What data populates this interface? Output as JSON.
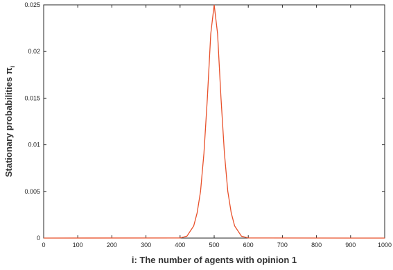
{
  "chart_data": {
    "type": "line",
    "title": "",
    "xlabel": "i: The number of agents with opinion 1",
    "ylabel": "Stationary probabilities π",
    "ylabel_subscript": "i",
    "xlim": [
      0,
      1000
    ],
    "ylim": [
      0,
      0.025
    ],
    "xticks": [
      "0",
      "100",
      "200",
      "300",
      "400",
      "500",
      "600",
      "700",
      "800",
      "900",
      "1000"
    ],
    "yticks": [
      "0",
      "0.005",
      "0.01",
      "0.015",
      "0.02",
      "0.025"
    ],
    "grid": false,
    "series": [
      {
        "color": "#e8502a",
        "x": [
          0,
          400,
          420,
          440,
          450,
          460,
          470,
          480,
          490,
          500,
          510,
          520,
          530,
          540,
          550,
          560,
          580,
          600,
          1000
        ],
        "y": [
          0,
          1e-05,
          0.0002,
          0.0013,
          0.0027,
          0.005,
          0.0091,
          0.015,
          0.0219,
          0.025,
          0.0219,
          0.015,
          0.0091,
          0.005,
          0.0027,
          0.0013,
          0.0002,
          1e-05,
          0
        ]
      }
    ]
  }
}
